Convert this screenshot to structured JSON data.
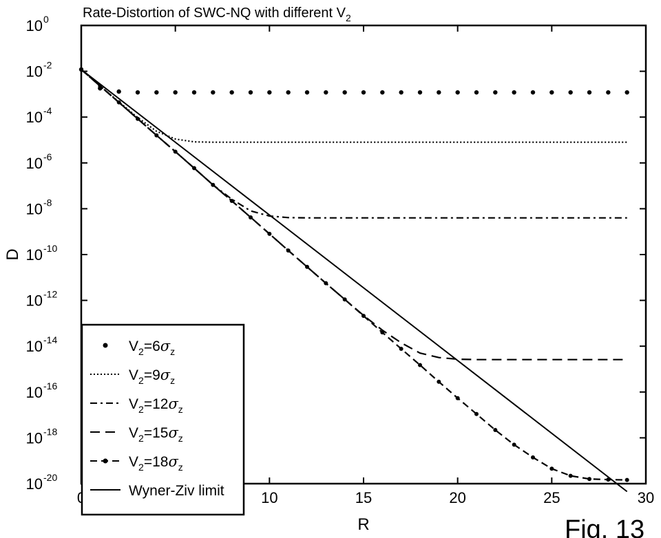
{
  "chart_data": {
    "type": "line",
    "title": "Rate-Distortion of SWC-NQ with different V",
    "title_subscript": "2",
    "xlabel": "R",
    "ylabel": "D",
    "xlim": [
      0,
      30
    ],
    "ylim": [
      1e-20,
      1
    ],
    "yscale": "log",
    "grid": false,
    "legend_position": "bottom-left",
    "xticks": [
      0,
      5,
      10,
      15,
      20,
      25,
      30
    ],
    "xtick_labels": [
      "0",
      "5",
      "10",
      "15",
      "20",
      "25",
      "30"
    ],
    "yticks": [
      {
        "value": 1,
        "base": "10",
        "exp": "0"
      },
      {
        "value": 0.01,
        "base": "10",
        "exp": "-2"
      },
      {
        "value": 0.0001,
        "base": "10",
        "exp": "-4"
      },
      {
        "value": 1e-06,
        "base": "10",
        "exp": "-6"
      },
      {
        "value": 1e-08,
        "base": "10",
        "exp": "-8"
      },
      {
        "value": 1e-10,
        "base": "10",
        "exp": "-10"
      },
      {
        "value": 1e-12,
        "base": "10",
        "exp": "-12"
      },
      {
        "value": 1e-14,
        "base": "10",
        "exp": "-14"
      },
      {
        "value": 1e-16,
        "base": "10",
        "exp": "-16"
      },
      {
        "value": 1e-18,
        "base": "10",
        "exp": "-18"
      },
      {
        "value": 1e-20,
        "base": "10",
        "exp": "-20"
      }
    ],
    "series": [
      {
        "name": "V2=6σz",
        "legend": {
          "v": "V",
          "sub": "2",
          "eq": "=6",
          "sym": "σ",
          "symsub": "z"
        },
        "style": "dots",
        "x": [
          0,
          1,
          2,
          3,
          4,
          5,
          6,
          7,
          8,
          9,
          10,
          11,
          12,
          13,
          14,
          15,
          16,
          17,
          18,
          19,
          20,
          21,
          22,
          23,
          24,
          25,
          26,
          27,
          28,
          29
        ],
        "y": [
          0.012,
          0.0018,
          0.0013,
          0.0012,
          0.0012,
          0.0012,
          0.0012,
          0.0012,
          0.0012,
          0.0012,
          0.0012,
          0.0012,
          0.0012,
          0.0012,
          0.0012,
          0.0012,
          0.0012,
          0.0012,
          0.0012,
          0.0012,
          0.0012,
          0.0012,
          0.0012,
          0.0012,
          0.0012,
          0.0012,
          0.0012,
          0.0012,
          0.0012,
          0.0012
        ]
      },
      {
        "name": "V2=9σz",
        "legend": {
          "v": "V",
          "sub": "2",
          "eq": "=9",
          "sym": "σ",
          "symsub": "z"
        },
        "style": "dotted",
        "x": [
          0,
          1,
          2,
          3,
          4,
          5,
          6,
          7,
          8,
          9,
          10,
          11,
          12,
          13,
          14,
          15,
          16,
          17,
          18,
          19,
          20,
          21,
          22,
          23,
          24,
          25,
          26,
          27,
          28,
          29
        ],
        "y": [
          0.012,
          0.0023,
          0.00046,
          9.5e-05,
          2.4e-05,
          1.1e-05,
          8.3e-06,
          8e-06,
          8e-06,
          8e-06,
          8e-06,
          8e-06,
          8e-06,
          8e-06,
          8e-06,
          8e-06,
          8e-06,
          8e-06,
          8e-06,
          8e-06,
          8e-06,
          8e-06,
          8e-06,
          8e-06,
          8e-06,
          8e-06,
          8e-06,
          8e-06,
          8e-06,
          8e-06
        ]
      },
      {
        "name": "V2=12σz",
        "legend": {
          "v": "V",
          "sub": "2",
          "eq": "=12",
          "sym": "σ",
          "symsub": "z"
        },
        "style": "dashdot",
        "x": [
          0,
          1,
          2,
          3,
          4,
          5,
          6,
          7,
          8,
          9,
          10,
          11,
          12,
          13,
          14,
          15,
          16,
          17,
          18,
          19,
          20,
          21,
          22,
          23,
          24,
          25,
          26,
          27,
          28,
          29
        ],
        "y": [
          0.012,
          0.0023,
          0.00044,
          8.4e-05,
          1.6e-05,
          3.1e-06,
          5.9e-07,
          1.1e-07,
          2.6e-08,
          8e-09,
          4.8e-09,
          4.1e-09,
          4e-09,
          4e-09,
          4e-09,
          4e-09,
          4e-09,
          4e-09,
          4e-09,
          4e-09,
          4e-09,
          4e-09,
          4e-09,
          4e-09,
          4e-09,
          4e-09,
          4e-09,
          4e-09,
          4e-09,
          4e-09
        ]
      },
      {
        "name": "V2=15σz",
        "legend": {
          "v": "V",
          "sub": "2",
          "eq": "=15",
          "sym": "σ",
          "symsub": "z"
        },
        "style": "dashed",
        "x": [
          0,
          1,
          2,
          3,
          4,
          5,
          6,
          7,
          8,
          9,
          10,
          11,
          12,
          13,
          14,
          15,
          16,
          17,
          18,
          19,
          20,
          21,
          22,
          23,
          24,
          25,
          26,
          27,
          28,
          29
        ],
        "y": [
          0.012,
          0.0023,
          0.00044,
          8.4e-05,
          1.6e-05,
          3.1e-06,
          5.9e-07,
          1.1e-07,
          2.2e-08,
          4.2e-09,
          8e-10,
          1.5e-10,
          2.9e-11,
          5.6e-12,
          1.1e-12,
          2.2e-13,
          5e-14,
          1.4e-14,
          5e-15,
          3.2e-15,
          2.7e-15,
          2.6e-15,
          2.6e-15,
          2.6e-15,
          2.6e-15,
          2.6e-15,
          2.6e-15,
          2.6e-15,
          2.6e-15,
          2.6e-15
        ]
      },
      {
        "name": "V2=18σz",
        "legend": {
          "v": "V",
          "sub": "2",
          "eq": "=18",
          "sym": "σ",
          "symsub": "z"
        },
        "style": "dashdots",
        "x": [
          0,
          1,
          2,
          3,
          4,
          5,
          6,
          7,
          8,
          9,
          10,
          11,
          12,
          13,
          14,
          15,
          16,
          17,
          18,
          19,
          20,
          21,
          22,
          23,
          24,
          25,
          26,
          27,
          28,
          29
        ],
        "y": [
          0.012,
          0.0023,
          0.00044,
          8.4e-05,
          1.6e-05,
          3.1e-06,
          5.9e-07,
          1.1e-07,
          2.2e-08,
          4.2e-09,
          8e-10,
          1.5e-10,
          2.9e-11,
          5.6e-12,
          1.1e-12,
          2.1e-13,
          4e-14,
          7.7e-15,
          1.5e-15,
          2.8e-16,
          5.4e-17,
          1.1e-17,
          2.2e-18,
          5e-19,
          1.4e-19,
          4.5e-20,
          2.2e-20,
          1.6e-20,
          1.5e-20,
          1.45e-20
        ]
      },
      {
        "name": "Wyner-Ziv limit",
        "legend": {
          "v": "Wyner-Ziv limit"
        },
        "style": "solid",
        "x": [
          0,
          29
        ],
        "y": [
          0.012,
          4.5e-21
        ]
      }
    ]
  },
  "figure_label": "Fig. 13"
}
